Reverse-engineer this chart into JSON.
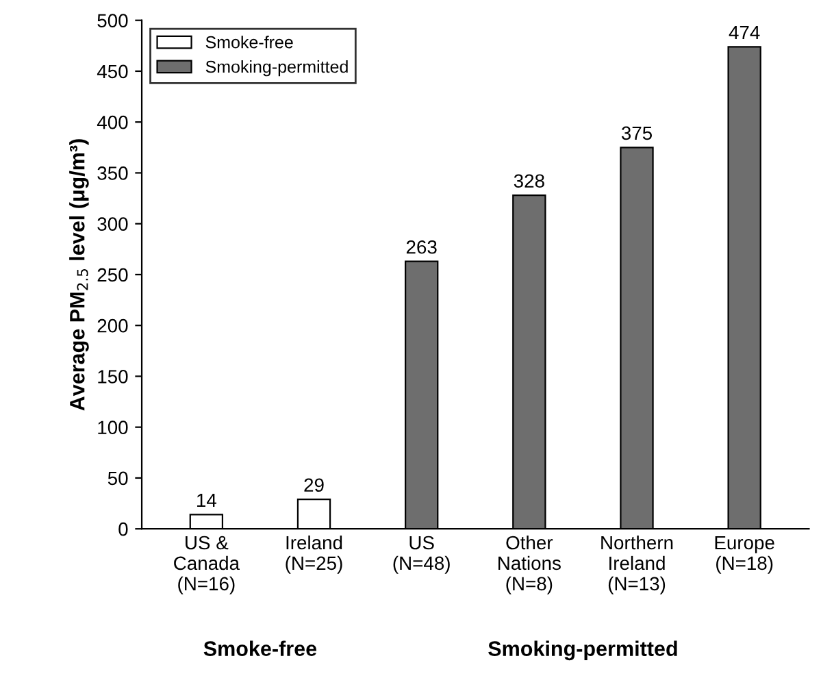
{
  "chart_data": {
    "type": "bar",
    "ylabel": "Average PM$_{2.5}$ level (μg/m³)",
    "categories": [
      "US &\nCanada\n(N=16)",
      "Ireland\n(N=25)",
      "US\n(N=48)",
      "Other\nNations\n(N=8)",
      "Northern\nIreland\n(N=13)",
      "Europe\n(N=18)"
    ],
    "series": [
      {
        "name": "Smoke-free",
        "color": "#ffffff",
        "values": [
          14,
          29,
          null,
          null,
          null,
          null
        ]
      },
      {
        "name": "Smoking-permitted",
        "color": "#6e6e6e",
        "values": [
          null,
          null,
          263,
          328,
          375,
          474
        ]
      }
    ],
    "ylim": [
      0,
      500
    ],
    "yticks": [
      0,
      50,
      100,
      150,
      200,
      250,
      300,
      350,
      400,
      450,
      500
    ],
    "data_labels": true,
    "grid": false,
    "legend": "top left",
    "annotations": [
      "Smoke-free",
      "Smoking-permitted"
    ]
  }
}
